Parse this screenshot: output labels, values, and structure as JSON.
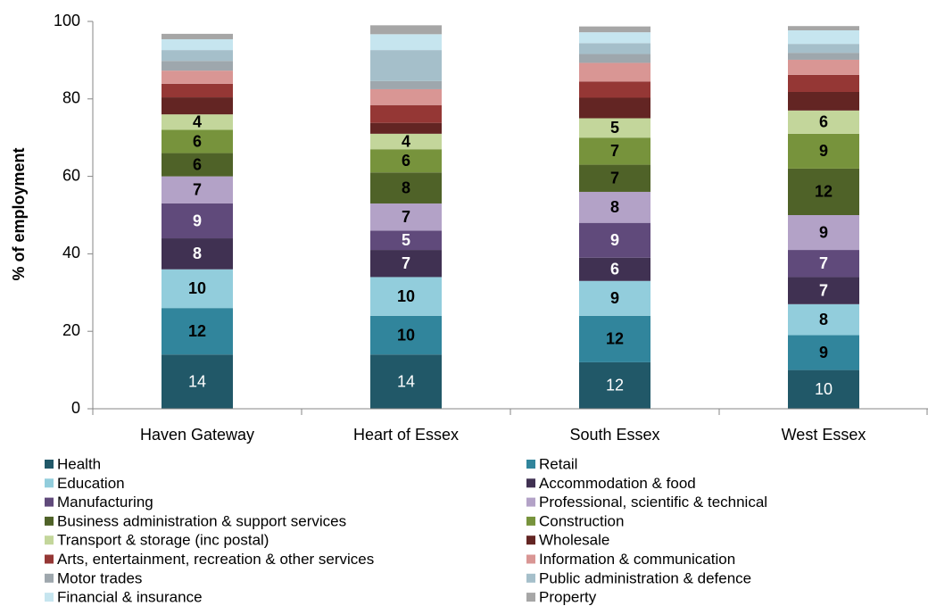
{
  "chart_data": {
    "type": "stacked_bar",
    "y_label": "% of employment",
    "categories": [
      "Haven Gateway",
      "Heart of Essex",
      "South Essex",
      "West Essex"
    ],
    "ylim": [
      0,
      100
    ],
    "yticks": [
      0,
      20,
      40,
      60,
      80,
      100
    ],
    "grid": false,
    "series": [
      {
        "name": "Health",
        "color": "#215868",
        "values": [
          14,
          14,
          12,
          10
        ],
        "show_labels": true,
        "label_color": "#ffffff",
        "label_bold": false
      },
      {
        "name": "Retail",
        "color": "#31859c",
        "values": [
          12,
          10,
          12,
          9
        ],
        "show_labels": true,
        "label_color": "#000000",
        "label_bold": true
      },
      {
        "name": "Education",
        "color": "#92cddc",
        "values": [
          10,
          10,
          9,
          8
        ],
        "show_labels": true,
        "label_color": "#000000",
        "label_bold": true
      },
      {
        "name": "Accommodation & food",
        "color": "#403152",
        "values": [
          8,
          7,
          6,
          7
        ],
        "show_labels": true,
        "label_color": "#ffffff",
        "label_bold": true
      },
      {
        "name": "Manufacturing",
        "color": "#604a7b",
        "values": [
          9,
          5,
          9,
          7
        ],
        "show_labels": true,
        "label_color": "#ffffff",
        "label_bold": true
      },
      {
        "name": "Professional, scientific & technical",
        "color": "#b3a2c7",
        "values": [
          7,
          7,
          8,
          9
        ],
        "show_labels": true,
        "label_color": "#000000",
        "label_bold": true
      },
      {
        "name": "Business administration & support services",
        "color": "#4f6228",
        "values": [
          6,
          8,
          7,
          12
        ],
        "show_labels": true,
        "label_color": "#000000",
        "label_bold": true
      },
      {
        "name": "Construction",
        "color": "#77933c",
        "values": [
          6,
          6,
          7,
          9
        ],
        "show_labels": true,
        "label_color": "#000000",
        "label_bold": true
      },
      {
        "name": "Transport & storage (inc postal)",
        "color": "#c3d69b",
        "values": [
          4,
          4,
          5,
          6
        ],
        "show_labels": true,
        "label_color": "#000000",
        "label_bold": true
      },
      {
        "name": "Wholesale",
        "color": "#632523",
        "values": [
          4.4,
          2.8,
          5.3,
          4.8
        ],
        "show_labels": false
      },
      {
        "name": "Arts, entertainment, recreation & other services",
        "color": "#953735",
        "values": [
          3.5,
          4.6,
          4.2,
          4.4
        ],
        "show_labels": false
      },
      {
        "name": "Information & communication",
        "color": "#d99694",
        "values": [
          3.4,
          4.1,
          4.8,
          3.9
        ],
        "show_labels": false
      },
      {
        "name": "Motor trades",
        "color": "#9ea7ad",
        "values": [
          2.5,
          2.1,
          2.3,
          1.8
        ],
        "show_labels": false
      },
      {
        "name": "Public administration & defence",
        "color": "#a5bfca",
        "values": [
          2.8,
          8,
          2.8,
          2.3
        ],
        "show_labels": false
      },
      {
        "name": "Financial & insurance",
        "color": "#c6e5ef",
        "values": [
          2.8,
          4.1,
          2.8,
          3.5
        ],
        "show_labels": false
      },
      {
        "name": "Property",
        "color": "#a6a6a6",
        "values": [
          1.4,
          2.3,
          1.5,
          1.1
        ],
        "show_labels": false
      }
    ]
  }
}
